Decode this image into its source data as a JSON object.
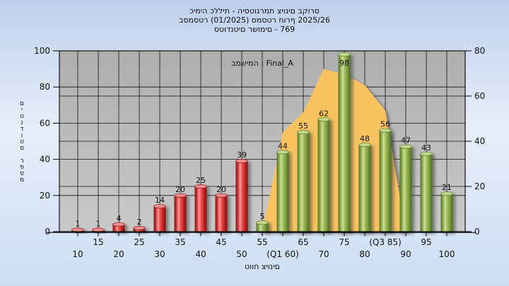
{
  "header": {
    "line1": "כימיה כללית - היסטוגרמת ציונים בקורס",
    "line2": "בסמסטר  (01/2025)  סמסטר חורף 2025/26",
    "line3": "סטודנטים רשומים - 769"
  },
  "legend": {
    "label": "במשימה : Final_A"
  },
  "axes": {
    "y_left_title": "מספר סטודנטים",
    "x_title": "טווח ציונים",
    "y_left_ticks": [
      0,
      20,
      40,
      60,
      80,
      100
    ],
    "y_right_ticks": [
      0,
      20,
      40,
      60,
      80
    ],
    "y_left_max": 100,
    "y_right_max": 80,
    "grid_y_left_values": [
      20,
      25,
      40,
      50,
      60,
      75,
      80
    ]
  },
  "chart_data": {
    "type": "bar",
    "title_lines": [
      "כימיה כללית - היסטוגרמת ציונים בקורס",
      "בסמסטר  (01/2025)  סמסטר חורף 2025/26",
      "סטודנטים רשומים - 769"
    ],
    "xlabel": "טווח ציונים",
    "ylabel": "מספר סטודנטים",
    "ylim_left": [
      0,
      100
    ],
    "ylim_right": [
      0,
      80
    ],
    "grid": true,
    "legend_position": "top-center",
    "categories": [
      10,
      15,
      20,
      25,
      30,
      35,
      40,
      45,
      50,
      55,
      60,
      65,
      70,
      75,
      80,
      85,
      90,
      95,
      100
    ],
    "x_tick_labels": [
      "10",
      "15",
      "20",
      "25",
      "30",
      "35",
      "40",
      "45",
      "50",
      "55",
      "(Q1 60)",
      "65",
      "70",
      "75",
      "80",
      "(Q3 85)",
      "90",
      "95",
      "100"
    ],
    "values": [
      1,
      1,
      4,
      2,
      14,
      20,
      25,
      20,
      39,
      5,
      44,
      55,
      62,
      98,
      48,
      56,
      47,
      43,
      21
    ],
    "bar_colors": [
      "red",
      "red",
      "red",
      "red",
      "red",
      "red",
      "red",
      "red",
      "red",
      "green",
      "green",
      "green",
      "green",
      "green",
      "green",
      "green",
      "green",
      "green",
      "green"
    ],
    "area_overlay": {
      "x": [
        55,
        60,
        65,
        70,
        75,
        80,
        85,
        90
      ],
      "values": [
        0,
        55,
        66,
        90,
        87,
        81,
        67,
        0
      ],
      "units": "left-axis (estimated from plot)",
      "color": "#f9c45f"
    }
  },
  "colors": {
    "red_bar": "#d93030",
    "green_bar": "#9cbb57",
    "area": "#f9c45f",
    "plot_bg_top": "#aeaeae",
    "plot_bg_bottom": "#c9c9c9",
    "grid": "#000000",
    "page_bg_top": "#bed0ec",
    "page_bg_bottom": "#cdddf3"
  }
}
